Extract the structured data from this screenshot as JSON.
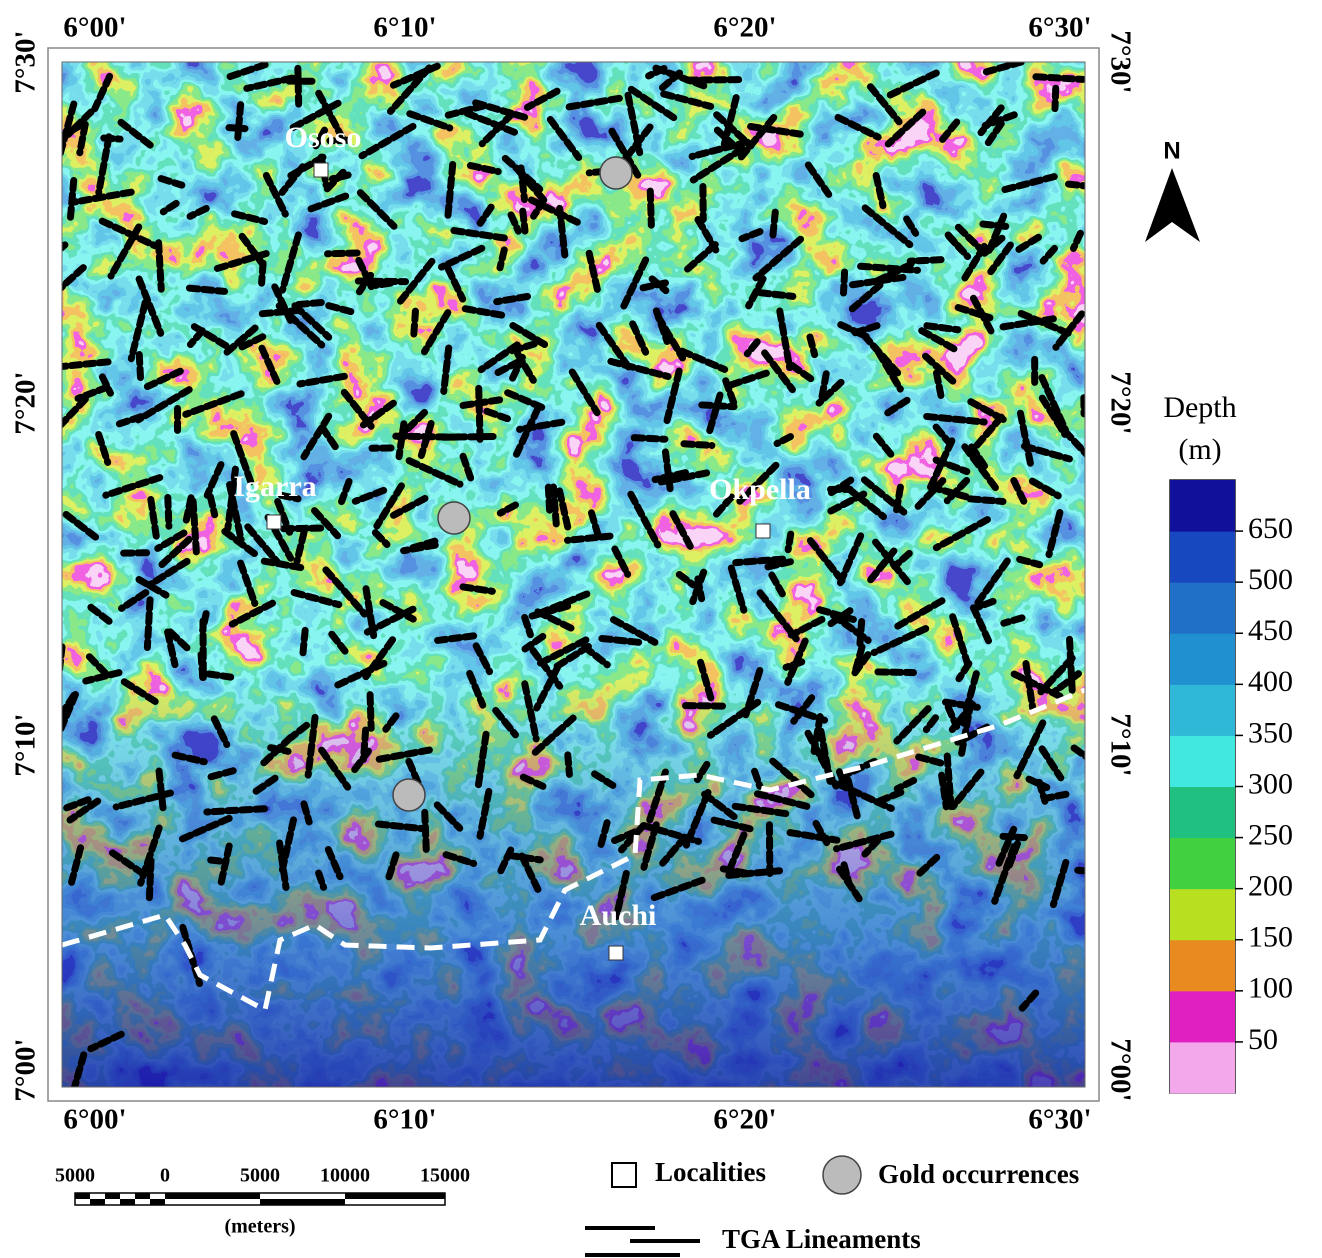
{
  "map": {
    "top_labels": [
      "6°00'",
      "6°10'",
      "6°20'",
      "6°30'"
    ],
    "bottom_labels": [
      "6°00'",
      "6°10'",
      "6°20'",
      "6°30'"
    ],
    "left_labels": [
      "7°30'",
      "7°20'",
      "7°10'",
      "7°00'"
    ],
    "right_labels": [
      "7°30'",
      "7°20'",
      "7°10'",
      "7°00'"
    ],
    "localities": [
      "Ososo",
      "Igarra",
      "Okpella",
      "Auchi"
    ],
    "north": "N"
  },
  "colorbar": {
    "title": "Depth",
    "unit": "(m)",
    "ticks": [
      650,
      500,
      450,
      400,
      350,
      300,
      250,
      200,
      150,
      100,
      50
    ],
    "colors": [
      "#f2a8ea",
      "#e020c0",
      "#e88a20",
      "#b8e020",
      "#40d040",
      "#20c080",
      "#40e8e0",
      "#30b8d8",
      "#2090d0",
      "#2070c8",
      "#1848c0",
      "#10109a"
    ]
  },
  "scale_bar": {
    "labels": [
      "5000",
      "0",
      "5000",
      "10000",
      "15000"
    ],
    "unit": "(meters)"
  },
  "legend": {
    "items": [
      "Localities",
      "Gold occurrences",
      "TGA Lineaments"
    ]
  }
}
